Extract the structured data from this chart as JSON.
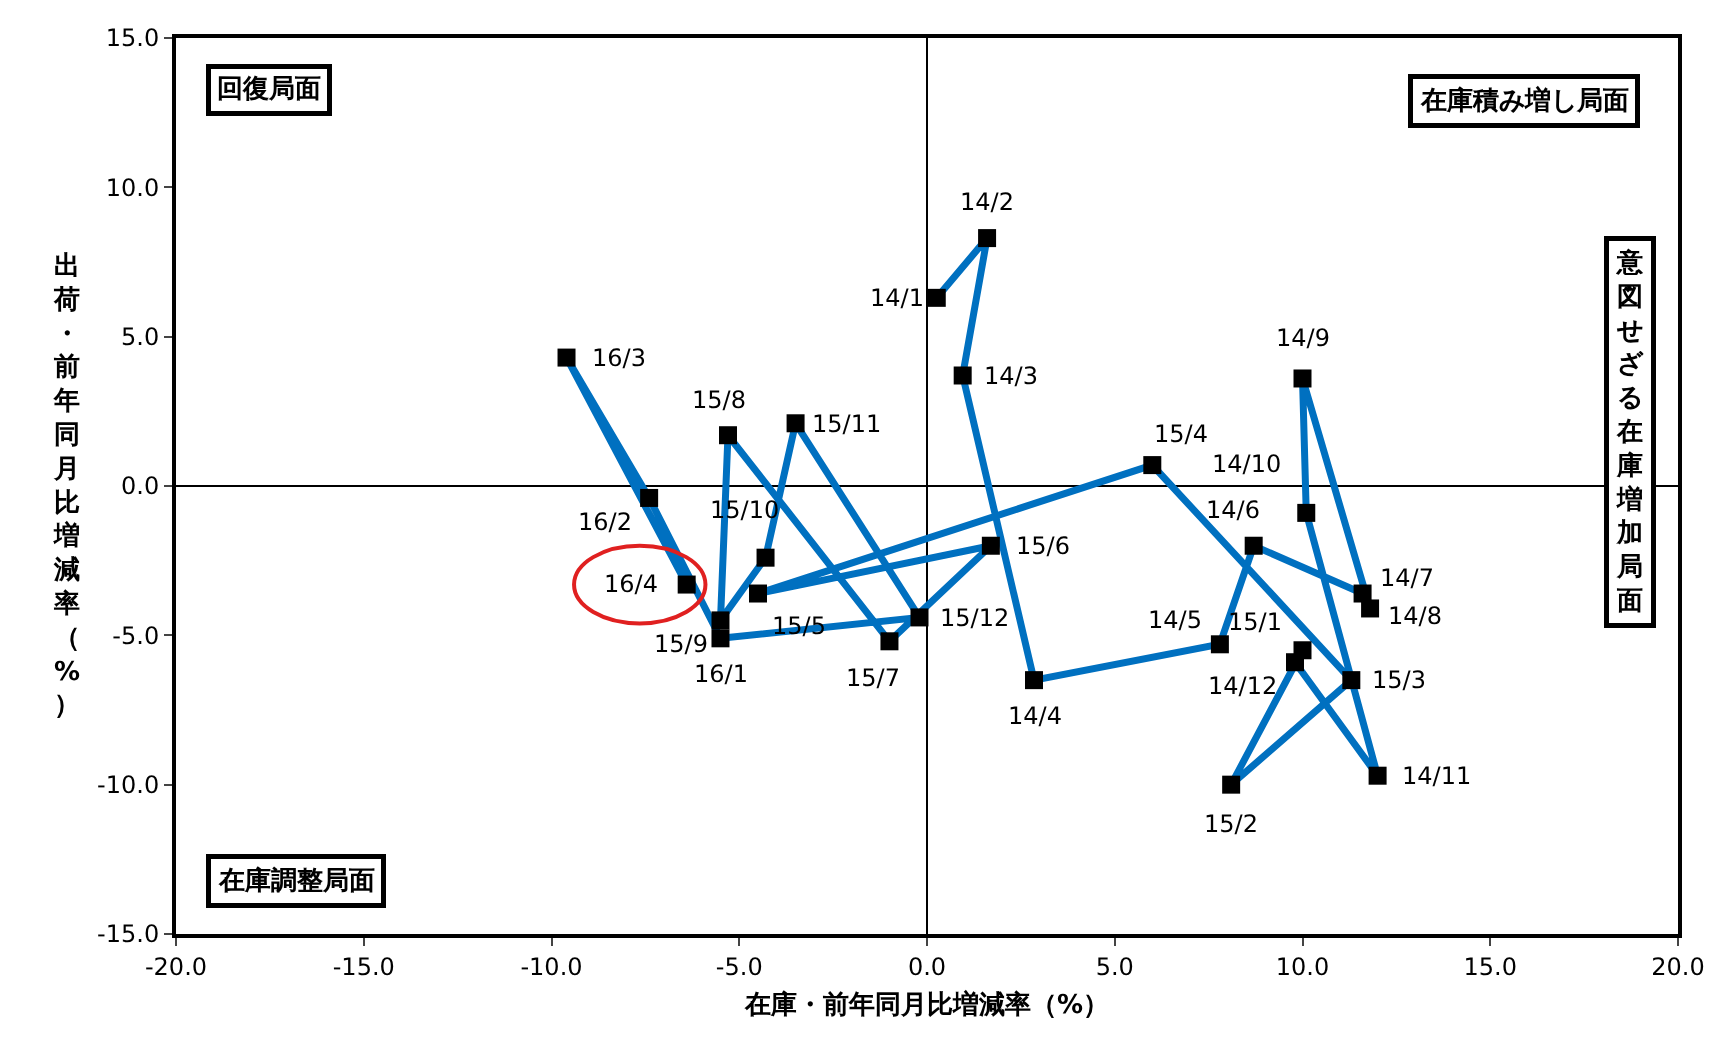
{
  "chart_data": {
    "type": "line",
    "xlabel": "在庫・前年同月比増減率（%）",
    "ylabel": "出荷・前年同月比増減率（%）",
    "series": [
      {
        "color": "#0070c0",
        "colors": [
          "#000000",
          "#000000",
          "#000000",
          "#000000",
          "#000000",
          "#000000",
          "#000000",
          "#000000",
          "#000000",
          "#000000",
          "#000000",
          "#000000",
          "#000000",
          "#000000",
          "#000000",
          "#000000",
          "#000000",
          "#000000",
          "#000000",
          "#000000",
          "#000000",
          "#000000",
          "#000000",
          "#000000",
          "#000000",
          "#000000",
          "#000000",
          "#000000"
        ],
        "x": [
          0.26,
          1.6,
          0.95,
          2.85,
          7.8,
          8.7,
          11.6,
          11.8,
          10.0,
          10.1,
          12.0,
          9.8,
          10.0,
          8.1,
          11.3,
          6.0,
          -4.5,
          1.7,
          -1.0,
          -5.3,
          -5.5,
          -4.3,
          -3.5,
          -0.2,
          -5.5,
          -7.4,
          -9.6,
          -6.4
        ],
        "values": [
          6.3,
          8.3,
          3.7,
          -6.5,
          -5.3,
          -2.0,
          -3.6,
          -4.1,
          3.6,
          -0.9,
          -9.7,
          -5.9,
          -5.5,
          -10.0,
          -6.5,
          0.7,
          -3.6,
          -2.0,
          -5.2,
          1.7,
          -4.5,
          -2.4,
          2.1,
          -4.4,
          -5.1,
          -0.4,
          4.3,
          -3.3
        ]
      }
    ],
    "marker": "square",
    "line_style": "solid",
    "xlim": [
      -20,
      20
    ],
    "ylim": [
      -15,
      15
    ],
    "xticks": [
      {
        "value": -20,
        "label": "-20.0"
      },
      {
        "value": -15,
        "label": "-15.0"
      },
      {
        "value": -10,
        "label": "-10.0"
      },
      {
        "value": -5,
        "label": "-5.0"
      },
      {
        "value": 0,
        "label": "0.0"
      },
      {
        "value": 5,
        "label": "5.0"
      },
      {
        "value": 10,
        "label": "10.0"
      },
      {
        "value": 15,
        "label": "15.0"
      },
      {
        "value": 20,
        "label": "20.0"
      }
    ],
    "yticks": [
      {
        "value": -15,
        "label": "-15.0"
      },
      {
        "value": -10,
        "label": "-10.0"
      },
      {
        "value": -5,
        "label": "-5.0"
      },
      {
        "value": 0,
        "label": "0.0"
      },
      {
        "value": 5,
        "label": "5.0"
      },
      {
        "value": 10,
        "label": "10.0"
      },
      {
        "value": 15,
        "label": "15.0"
      }
    ],
    "annotations": [
      "回復局面",
      "在庫積み増し局面",
      "意図せざる在庫増加局面",
      "在庫調整局面",
      {
        "text": "14/1",
        "x": 0.26,
        "y": 6.3
      },
      {
        "text": "14/2",
        "x": 1.6,
        "y": 8.3
      },
      {
        "text": "14/3",
        "x": 0.95,
        "y": 3.7
      },
      {
        "text": "14/4",
        "x": 2.85,
        "y": -6.5
      },
      {
        "text": "14/5",
        "x": 7.8,
        "y": -5.3
      },
      {
        "text": "14/6",
        "x": 8.7,
        "y": -2.0
      },
      {
        "text": "14/7",
        "x": 11.6,
        "y": -3.6
      },
      {
        "text": "14/8",
        "x": 11.8,
        "y": -4.1
      },
      {
        "text": "14/9",
        "x": 10.0,
        "y": 3.6
      },
      {
        "text": "14/10",
        "x": 10.1,
        "y": -0.9
      },
      {
        "text": "14/11",
        "x": 12.0,
        "y": -9.7
      },
      {
        "text": "14/12",
        "x": 9.8,
        "y": -5.9
      },
      {
        "text": "15/1",
        "x": 10.0,
        "y": -5.5
      },
      {
        "text": "15/2",
        "x": 8.1,
        "y": -10.0
      },
      {
        "text": "15/3",
        "x": 11.3,
        "y": -6.5
      },
      {
        "text": "15/4",
        "x": 6.0,
        "y": 0.7
      },
      {
        "text": "15/5",
        "x": -4.5,
        "y": -3.6
      },
      {
        "text": "15/6",
        "x": 1.7,
        "y": -2.0
      },
      {
        "text": "15/7",
        "x": -1.0,
        "y": -5.2
      },
      {
        "text": "15/8",
        "x": -5.3,
        "y": 1.7
      },
      {
        "text": "15/9",
        "x": -5.5,
        "y": -4.5
      },
      {
        "text": "15/10",
        "x": -4.3,
        "y": -2.4
      },
      {
        "text": "15/11",
        "x": -3.5,
        "y": 2.1
      },
      {
        "text": "15/12",
        "x": -0.2,
        "y": -4.4
      },
      {
        "text": "16/1",
        "x": -5.5,
        "y": -5.1
      },
      {
        "text": "16/2",
        "x": -7.4,
        "y": -0.4
      },
      {
        "text": "16/3",
        "x": -9.6,
        "y": 4.3
      },
      {
        "text": "16/4",
        "x": -6.4,
        "y": -3.3
      }
    ]
  }
}
